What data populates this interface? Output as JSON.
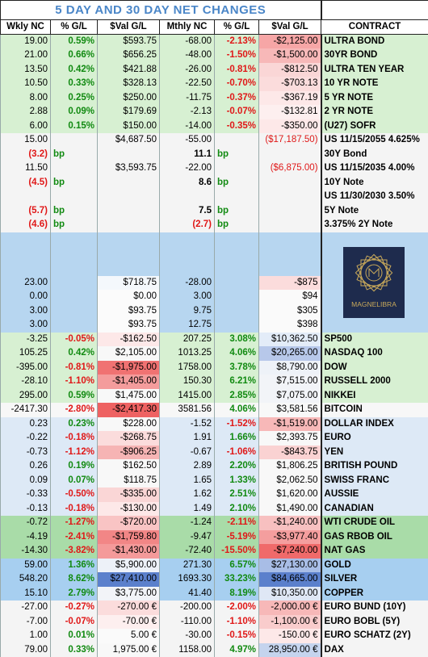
{
  "title": "5 DAY AND 30 DAY NET CHANGES",
  "logo_text": "MAGNELIBRA",
  "headers": [
    "Wkly NC",
    "% G/L",
    "$Val G/L",
    "Mthly NC",
    "% G/L",
    "$Val G/L",
    "CONTRACT"
  ],
  "sections": [
    {
      "color": "#d7f0d2",
      "rows": [
        {
          "cells": [
            "19.00",
            "0.59%",
            "$593.75",
            "-68.00",
            "-2.13%",
            "-$2,125.00"
          ],
          "contract": "ULTRA BOND",
          "val_colors": [
            null,
            "#f6a6a6"
          ]
        },
        {
          "cells": [
            "21.00",
            "0.66%",
            "$656.25",
            "-48.00",
            "-1.50%",
            "-$1,500.00"
          ],
          "contract": "30YR BOND",
          "val_colors": [
            null,
            "#f7b8b8"
          ]
        },
        {
          "cells": [
            "13.50",
            "0.42%",
            "$421.88",
            "-26.00",
            "-0.81%",
            "-$812.50"
          ],
          "contract": "ULTRA TEN YEAR",
          "val_colors": [
            null,
            "#fad6d6"
          ]
        },
        {
          "cells": [
            "10.50",
            "0.33%",
            "$328.13",
            "-22.50",
            "-0.70%",
            "-$703.13"
          ],
          "contract": "10 YR NOTE",
          "val_colors": [
            null,
            "#fbdcdc"
          ]
        },
        {
          "cells": [
            "8.00",
            "0.25%",
            "$250.00",
            "-11.75",
            "-0.37%",
            "-$367.19"
          ],
          "contract": "5 YR NOTE",
          "val_colors": [
            null,
            "#fde8e8"
          ]
        },
        {
          "cells": [
            "2.88",
            "0.09%",
            "$179.69",
            "-2.13",
            "-0.07%",
            "-$132.81"
          ],
          "contract": "2 YR NOTE",
          "val_colors": [
            null,
            "#fdefef"
          ]
        },
        {
          "cells": [
            "6.00",
            "0.15%",
            "$150.00",
            "-14.00",
            "-0.35%",
            "-$350.00"
          ],
          "contract": "(U27) SOFR",
          "val_colors": [
            null,
            "#fde8e8"
          ]
        }
      ]
    },
    {
      "color": "#f4f4f4",
      "rows": [
        {
          "cells": [
            "15.00",
            null,
            "$4,687.50",
            "-55.00",
            null,
            "($17,187.50)"
          ],
          "contract": "US 11/15/2055 4.625%",
          "val_colors": [
            null,
            null
          ]
        },
        {
          "cells": [
            "(3.2)",
            "bp",
            null,
            "11.1",
            "bp",
            null
          ],
          "contract": "30Y Bond",
          "val_colors": [
            null,
            null
          ]
        },
        {
          "cells": [
            "11.50",
            null,
            "$3,593.75",
            "-22.00",
            null,
            "($6,875.00)"
          ],
          "contract": "US 11/15/2035 4.00%",
          "val_colors": [
            null,
            null
          ]
        },
        {
          "cells": [
            "(4.5)",
            "bp",
            null,
            "8.6",
            "bp",
            null
          ],
          "contract": "10Y Note",
          "val_colors": [
            null,
            null
          ]
        },
        {
          "cells": [
            null,
            null,
            null,
            null,
            null,
            null
          ],
          "contract": "US 11/30/2030 3.50%",
          "val_colors": [
            null,
            null
          ]
        },
        {
          "cells": [
            "(5.7)",
            "bp",
            null,
            "7.5",
            "bp",
            null
          ],
          "contract": "5Y Note",
          "val_colors": [
            null,
            null
          ]
        },
        {
          "cells": [
            "(4.6)",
            "bp",
            null,
            "(2.7)",
            "bp",
            null
          ],
          "contract": "3.375% 2Y Note",
          "val_colors": [
            null,
            null
          ]
        }
      ]
    },
    {
      "color": "#b7d6f0",
      "logo": true,
      "rows": [
        {
          "cells": [
            "23.00",
            null,
            "$718.75",
            "-28.00",
            null,
            "-$875"
          ],
          "contract": null,
          "val_colors": [
            "#f4f8fc",
            "#fbdcdc"
          ]
        },
        {
          "cells": [
            "0.00",
            null,
            "$0.00",
            "3.00",
            null,
            "$94"
          ],
          "contract": null,
          "val_colors": [
            "#fbfbfb",
            "#fafafa"
          ]
        },
        {
          "cells": [
            "3.00",
            null,
            "$93.75",
            "9.75",
            null,
            "$305"
          ],
          "contract": null,
          "val_colors": [
            "#fbfbfb",
            "#fafafa"
          ]
        },
        {
          "cells": [
            "3.00",
            null,
            "$93.75",
            "12.75",
            null,
            "$398"
          ],
          "contract": null,
          "val_colors": [
            "#fbfbfb",
            "#fafafa"
          ]
        }
      ]
    },
    {
      "color": "#d7f0d2",
      "rows": [
        {
          "cells": [
            "-3.25",
            "-0.05%",
            "-$162.50",
            "207.25",
            "3.08%",
            "$10,362.50"
          ],
          "contract": "SP500",
          "val_colors": [
            "#fde8e8",
            "#e3ecf8"
          ]
        },
        {
          "cells": [
            "105.25",
            "0.42%",
            "$2,105.00",
            "1013.25",
            "4.06%",
            "$20,265.00"
          ],
          "contract": "NASDAQ 100",
          "val_colors": [
            "#f8f8f8",
            "#b7c8ea"
          ]
        },
        {
          "cells": [
            "-395.00",
            "-0.81%",
            "-$1,975.00",
            "1758.00",
            "3.78%",
            "$8,790.00"
          ],
          "contract": "DOW",
          "val_colors": [
            "#f07272",
            "#eef2f8"
          ]
        },
        {
          "cells": [
            "-28.10",
            "-1.10%",
            "-$1,405.00",
            "150.30",
            "6.21%",
            "$7,515.00"
          ],
          "contract": "RUSSELL 2000",
          "val_colors": [
            "#f49c9c",
            "#f2f4f8"
          ]
        },
        {
          "cells": [
            "295.00",
            "0.59%",
            "$1,475.00",
            "1415.00",
            "2.85%",
            "$7,075.00"
          ],
          "contract": "NIKKEI",
          "val_colors": [
            "#f8f8f8",
            "#f2f4f8"
          ]
        }
      ]
    },
    {
      "color": "#f7f7f7",
      "rows": [
        {
          "cells": [
            "-2417.30",
            "-2.80%",
            "-$2,417.30",
            "3581.56",
            "4.06%",
            "$3,581.56"
          ],
          "contract": "BITCOIN",
          "val_colors": [
            "#ee6262",
            "#f8f8f8"
          ]
        }
      ]
    },
    {
      "color": "#dde9f6",
      "rows": [
        {
          "cells": [
            "0.23",
            "0.23%",
            "$228.00",
            "-1.52",
            "-1.52%",
            "-$1,519.00"
          ],
          "contract": "DOLLAR INDEX",
          "val_colors": [
            "#f8f8f8",
            "#f7b8b8"
          ]
        },
        {
          "cells": [
            "-0.22",
            "-0.18%",
            "-$268.75",
            "1.91",
            "1.66%",
            "$2,393.75"
          ],
          "contract": "EURO",
          "val_colors": [
            "#fbdcdc",
            "#f8f8f8"
          ]
        },
        {
          "cells": [
            "-0.73",
            "-1.12%",
            "-$906.25",
            "-0.67",
            "-1.06%",
            "-$843.75"
          ],
          "contract": "YEN",
          "val_colors": [
            "#f6b4b4",
            "#fad2d2"
          ]
        },
        {
          "cells": [
            "0.26",
            "0.19%",
            "$162.50",
            "2.89",
            "2.20%",
            "$1,806.25"
          ],
          "contract": "BRITISH POUND",
          "val_colors": [
            "#f8f8f8",
            "#f8f8f8"
          ]
        },
        {
          "cells": [
            "0.09",
            "0.07%",
            "$118.75",
            "1.65",
            "1.33%",
            "$2,062.50"
          ],
          "contract": "SWISS FRANC",
          "val_colors": [
            "#f8f8f8",
            "#f8f8f8"
          ]
        },
        {
          "cells": [
            "-0.33",
            "-0.50%",
            "-$335.00",
            "1.62",
            "2.51%",
            "$1,620.00"
          ],
          "contract": "AUSSIE",
          "val_colors": [
            "#fad6d6",
            "#f8f8f8"
          ]
        },
        {
          "cells": [
            "-0.13",
            "-0.18%",
            "-$130.00",
            "1.49",
            "2.10%",
            "$1,490.00"
          ],
          "contract": "CANADIAN",
          "val_colors": [
            "#fde8e8",
            "#f8f8f8"
          ]
        }
      ]
    },
    {
      "color": "#a9dca8",
      "rows": [
        {
          "cells": [
            "-0.72",
            "-1.27%",
            "-$720.00",
            "-1.24",
            "-2.11%",
            "-$1,240.00"
          ],
          "contract": "WTI CRUDE OIL",
          "val_colors": [
            "#f9c4c4",
            "#f7c0c0"
          ]
        },
        {
          "cells": [
            "-4.19",
            "-2.41%",
            "-$1,759.80",
            "-9.47",
            "-5.19%",
            "-$3,977.40"
          ],
          "contract": "GAS RBOB OIL",
          "val_colors": [
            "#f28686",
            "#f49e9e"
          ]
        },
        {
          "cells": [
            "-14.30",
            "-3.82%",
            "-$1,430.00",
            "-72.40",
            "-15.50%",
            "-$7,240.00"
          ],
          "contract": "NAT GAS",
          "val_colors": [
            "#f49a9a",
            "#f06a6a"
          ]
        }
      ]
    },
    {
      "color": "#a7cff0",
      "rows": [
        {
          "cells": [
            "59.00",
            "1.36%",
            "$5,900.00",
            "271.30",
            "6.57%",
            "$27,130.00"
          ],
          "contract": "GOLD",
          "val_colors": [
            "#edf1f8",
            "#a8bde6"
          ]
        },
        {
          "cells": [
            "548.20",
            "8.62%",
            "$27,410.00",
            "1693.30",
            "33.23%",
            "$84,665.00"
          ],
          "contract": "SILVER",
          "val_colors": [
            "#5b80cc",
            "#5b80cc"
          ]
        },
        {
          "cells": [
            "15.10",
            "2.79%",
            "$3,775.00",
            "41.40",
            "8.19%",
            "$10,350.00"
          ],
          "contract": "COPPER",
          "val_colors": [
            "#f2f4f8",
            "#dfe7f5"
          ]
        }
      ]
    },
    {
      "color": "#f4f4f4",
      "rows": [
        {
          "cells": [
            "-27.00",
            "-0.27%",
            "-270.00 €",
            "-200.00",
            "-2.00%",
            "-2,000.00 €"
          ],
          "contract": "EURO BUND (10Y)",
          "val_colors": [
            "#fbdcdc",
            "#f7b8b8"
          ]
        },
        {
          "cells": [
            "-7.00",
            "-0.07%",
            "-70.00 €",
            "-110.00",
            "-1.10%",
            "-1,100.00 €"
          ],
          "contract": "EURO BOBL (5Y)",
          "val_colors": [
            "#fdefef",
            "#f9cccc"
          ]
        },
        {
          "cells": [
            "1.00",
            "0.01%",
            "5.00 €",
            "-30.00",
            "-0.15%",
            "-150.00 €"
          ],
          "contract": "EURO SCHATZ (2Y)",
          "val_colors": [
            "#fafafa",
            "#fde8e8"
          ]
        },
        {
          "cells": [
            "79.00",
            "0.33%",
            "1,975.00 €",
            "1158.00",
            "4.97%",
            "28,950.00 €"
          ],
          "contract": "DAX",
          "val_colors": [
            "#f8f8f8",
            "#c5d4ee"
          ]
        }
      ]
    }
  ]
}
